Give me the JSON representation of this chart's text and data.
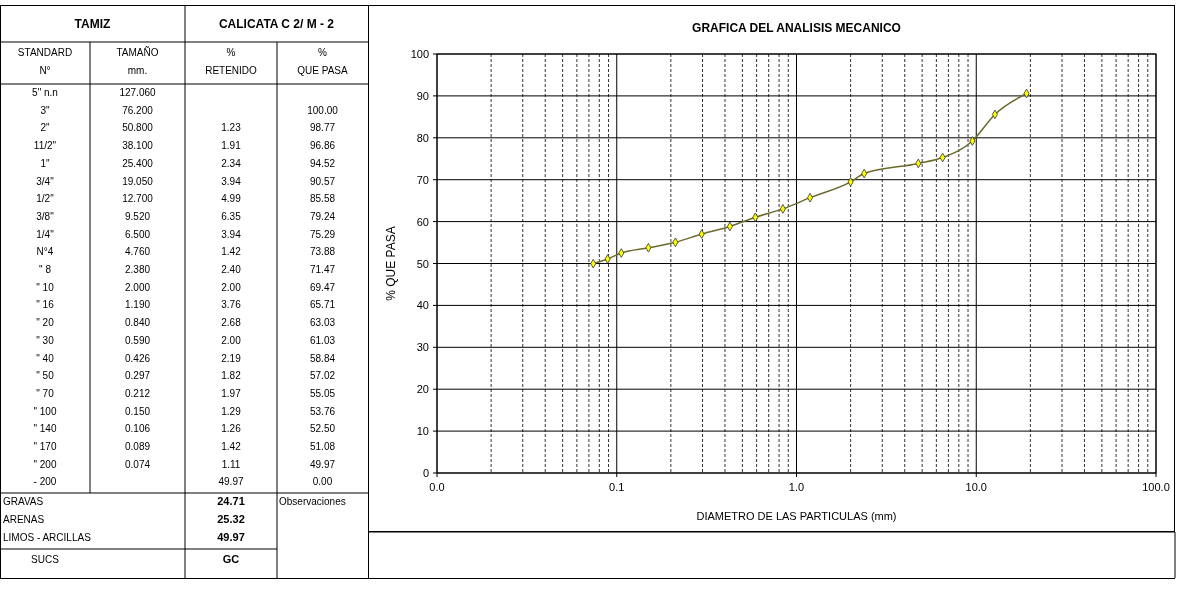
{
  "chart_data": [
    {
      "type": "other",
      "annotations": [
        "TAMIZ",
        "CALICATA C 2/ M - 2",
        "STANDARD",
        "TAMAÑO",
        "%",
        "%",
        "N°",
        "mm.",
        "RETENIDO",
        "QUE PASA",
        "5\" n.n",
        "127.060",
        "3\"",
        "76.200",
        "100.00",
        "2\"",
        "50.800",
        "1.23",
        "98.77",
        "11/2\"",
        "38.100",
        "1.91",
        "96.86",
        "1\"",
        "25.400",
        "2.34",
        "94.52",
        "3/4\"",
        "19.050",
        "3.94",
        "90.57",
        "1/2\"",
        "12.700",
        "4.99",
        "85.58",
        "3/8\"",
        "9.520",
        "6.35",
        "79.24",
        "1/4\"",
        "6.500",
        "3.94",
        "75.29",
        "N°4",
        "4.760",
        "1.42",
        "73.88",
        "\" 8",
        "2.380",
        "2.40",
        "71.47",
        "\" 10",
        "2.000",
        "2.00",
        "69.47",
        "\" 16",
        "1.190",
        "3.76",
        "65.71",
        "\" 20",
        "0.840",
        "2.68",
        "63.03",
        "\" 30",
        "0.590",
        "2.00",
        "61.03",
        "\" 40",
        "0.426",
        "2.19",
        "58.84",
        "\" 50",
        "0.297",
        "1.82",
        "57.02",
        "\" 70",
        "0.212",
        "1.97",
        "55.05",
        "\" 100",
        "0.150",
        "1.29",
        "53.76",
        "\" 140",
        "0.106",
        "1.26",
        "52.50",
        "\" 170",
        "0.089",
        "1.42",
        "51.08",
        "\" 200",
        "0.074",
        "1.11",
        "49.97",
        "- 200",
        "49.97",
        "0.00",
        "GRAVAS",
        "24.71",
        "Observaciones",
        "ARENAS",
        "25.32",
        "LIMOS - ARCILLAS",
        "49.97",
        "SUCS",
        "GC"
      ]
    },
    {
      "type": "line",
      "title": "GRAFICA DEL ANALISIS MECANICO",
      "xlabel": "DIAMETRO DE LAS PARTICULAS  (mm)",
      "ylabel": "% QUE PASA",
      "x": [
        0.074,
        0.089,
        0.106,
        0.15,
        0.212,
        0.297,
        0.426,
        0.59,
        0.84,
        1.19,
        2.0,
        2.38,
        4.76,
        6.5,
        9.52,
        12.7,
        19.05
      ],
      "series": [
        {
          "color": "#6b6b2e",
          "values": [
            49.97,
            51.08,
            52.5,
            53.76,
            55.05,
            57.02,
            58.84,
            61.03,
            63.03,
            65.71,
            69.47,
            71.47,
            73.88,
            75.29,
            79.24,
            85.58,
            90.57
          ]
        }
      ],
      "log": "x",
      "xlim": [
        0.01,
        100
      ],
      "xticks": [
        {
          "value": 0.01,
          "label": "0.0"
        },
        {
          "value": 0.1,
          "label": "0.1"
        },
        {
          "value": 1,
          "label": "1.0"
        },
        {
          "value": 10,
          "label": "10.0"
        },
        {
          "value": 100,
          "label": "100.0"
        }
      ],
      "ylim": [
        0,
        100
      ],
      "yticks": [
        0,
        10,
        20,
        30,
        40,
        50,
        60,
        70,
        80,
        90,
        100
      ],
      "grid": true,
      "marker": "diamond",
      "line_style": "solid"
    }
  ]
}
